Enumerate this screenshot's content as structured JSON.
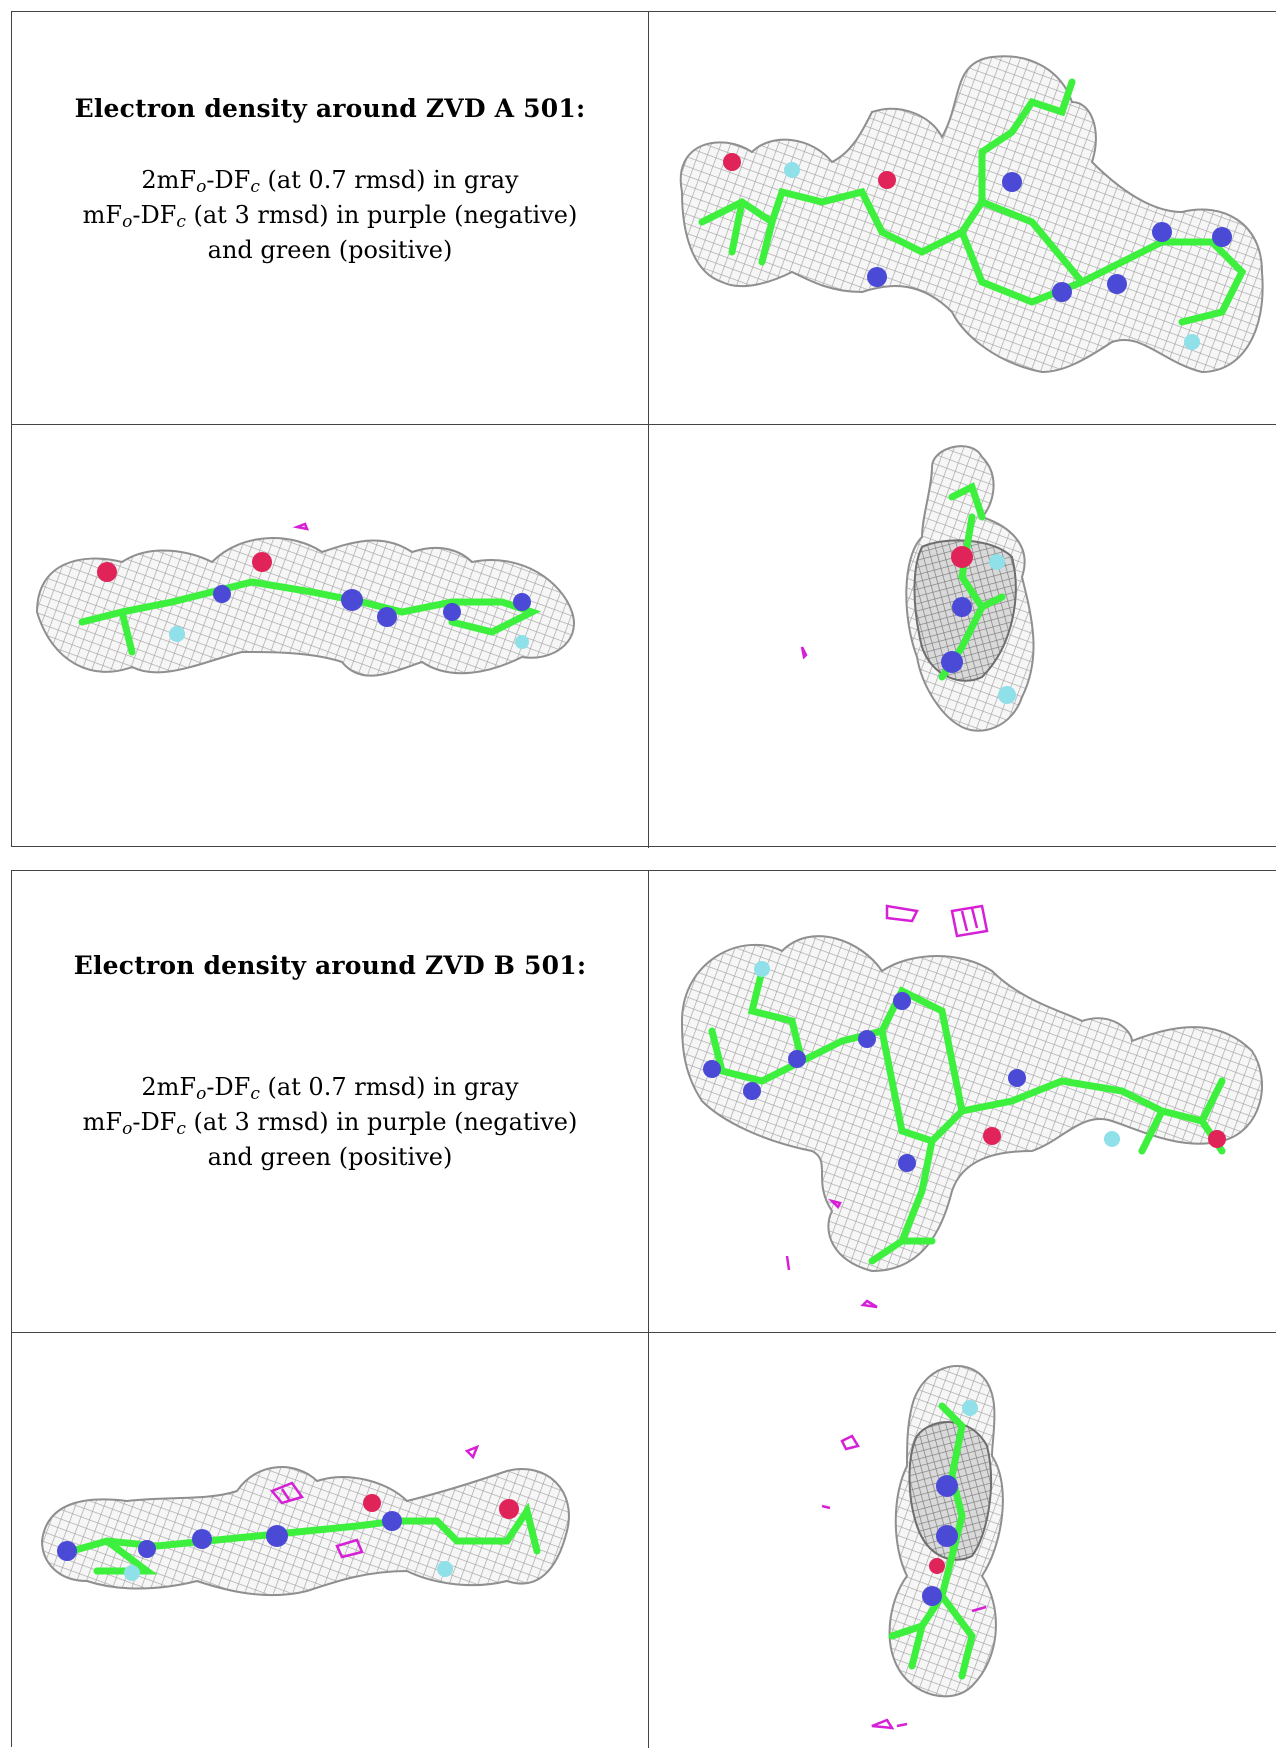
{
  "panels": [
    {
      "title": "Electron density around ZVD A 501:",
      "legend": {
        "line1_main": "2mF",
        "line1_sub_o": "o",
        "line1_mid": "-DF",
        "line1_sub_c": "c",
        "line1_rest": " (at 0.7 rmsd) in gray",
        "line2_main": "mF",
        "line2_sub_o": "o",
        "line2_mid": "-DF",
        "line2_sub_c": "c",
        "line2_rest": " (at 3 rmsd) in purple (negative)",
        "line3": "and green (positive)"
      }
    },
    {
      "title": "Electron density around ZVD B 501:",
      "legend": {
        "line1_main": "2mF",
        "line1_sub_o": "o",
        "line1_mid": "-DF",
        "line1_sub_c": "c",
        "line1_rest": " (at 0.7 rmsd) in gray",
        "line2_main": "mF",
        "line2_sub_o": "o",
        "line2_mid": "-DF",
        "line2_sub_c": "c",
        "line2_rest": " (at 3 rmsd) in purple (negative)",
        "line3": "and green (positive)"
      }
    }
  ],
  "colors": {
    "mesh": "#9a9a9a",
    "carbon": "#3ef03e",
    "nitrogen": "#4a4ad6",
    "oxygen": "#e0245a",
    "fluorine": "#8fe0e8",
    "negative_density": "#d61fd6"
  }
}
